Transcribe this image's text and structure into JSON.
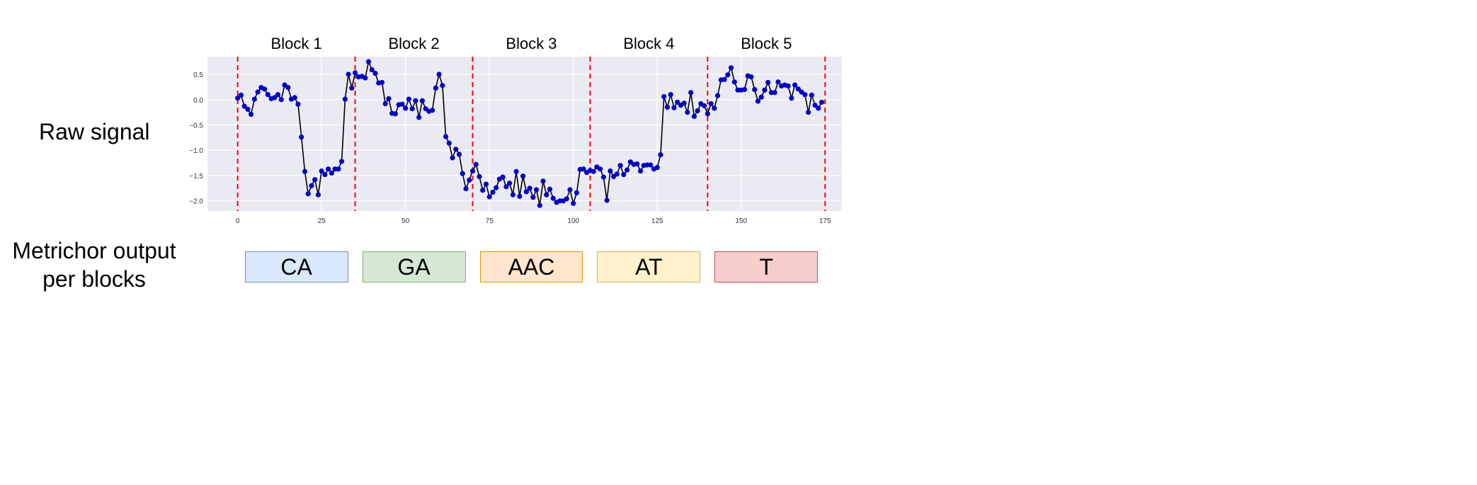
{
  "row_labels": {
    "raw": "Raw signal",
    "metrichor_line1": "Metrichor output",
    "metrichor_line2": "per blocks"
  },
  "colors": {
    "plot_bg": "#eaeaf2",
    "grid": "#ffffff",
    "line": "#000000",
    "point": "#0000cc",
    "boundary": "#ff0000"
  },
  "chart_data": {
    "type": "line",
    "title": "",
    "xlabel": "",
    "ylabel": "",
    "xlim": [
      -9,
      180
    ],
    "ylim": [
      -2.2,
      0.85
    ],
    "xticks": [
      0,
      25,
      50,
      75,
      100,
      125,
      150,
      175
    ],
    "yticks": [
      0.5,
      0.0,
      -0.5,
      -1.0,
      -1.5,
      -2.0
    ],
    "ytick_labels": [
      "0.5",
      "0.0",
      "−0.5",
      "−1.0",
      "−1.5",
      "−2.0"
    ],
    "grid": true,
    "block_boundaries": [
      0,
      35,
      70,
      105,
      140,
      175
    ],
    "block_titles": [
      "Block 1",
      "Block 2",
      "Block 3",
      "Block 4",
      "Block 5"
    ],
    "series": [
      {
        "values": [
          0.03,
          0.09,
          -0.13,
          -0.19,
          -0.29,
          0.01,
          0.15,
          0.24,
          0.21,
          0.1,
          0.02,
          0.04,
          0.1,
          0.0,
          0.29,
          0.24,
          0.01,
          0.04,
          -0.09,
          -0.74,
          -1.42,
          -1.86,
          -1.7,
          -1.58,
          -1.88,
          -1.41,
          -1.48,
          -1.37,
          -1.45,
          -1.37,
          -1.37,
          -1.22,
          0.01,
          0.5,
          0.23,
          0.53,
          0.45,
          0.46,
          0.43,
          0.75,
          0.59,
          0.52,
          0.33,
          0.34,
          -0.08,
          0.02,
          -0.27,
          -0.28,
          -0.1,
          -0.09,
          -0.17,
          0.01,
          -0.18,
          -0.02,
          -0.35,
          -0.02,
          -0.18,
          -0.23,
          -0.21,
          0.23,
          0.5,
          0.28,
          -0.73,
          -0.86,
          -1.15,
          -0.98,
          -1.08,
          -1.46,
          -1.76,
          -1.59,
          -1.41,
          -1.28,
          -1.52,
          -1.79,
          -1.67,
          -1.92,
          -1.83,
          -1.74,
          -1.57,
          -1.53,
          -1.72,
          -1.65,
          -1.88,
          -1.42,
          -1.91,
          -1.51,
          -1.82,
          -1.75,
          -1.93,
          -1.78,
          -2.09,
          -1.61,
          -1.88,
          -1.77,
          -1.95,
          -2.03,
          -2.0,
          -2.0,
          -1.96,
          -1.78,
          -2.05,
          -1.84,
          -1.38,
          -1.37,
          -1.44,
          -1.4,
          -1.42,
          -1.33,
          -1.37,
          -1.53,
          -1.99,
          -1.41,
          -1.52,
          -1.47,
          -1.3,
          -1.48,
          -1.39,
          -1.23,
          -1.28,
          -1.27,
          -1.41,
          -1.3,
          -1.29,
          -1.29,
          -1.37,
          -1.34,
          -1.09,
          0.06,
          -0.15,
          0.1,
          -0.16,
          -0.05,
          -0.11,
          -0.07,
          -0.25,
          0.14,
          -0.33,
          -0.22,
          -0.08,
          -0.12,
          -0.28,
          -0.08,
          -0.17,
          0.08,
          0.39,
          0.4,
          0.49,
          0.63,
          0.35,
          0.19,
          0.19,
          0.2,
          0.47,
          0.45,
          0.2,
          -0.03,
          0.05,
          0.19,
          0.34,
          0.14,
          0.14,
          0.35,
          0.27,
          0.29,
          0.27,
          0.03,
          0.29,
          0.21,
          0.15,
          0.1,
          -0.25,
          0.09,
          -0.11,
          -0.17,
          -0.05
        ]
      }
    ]
  },
  "outputs": [
    {
      "label": "CA",
      "fill": "#dae8fc",
      "border": "#6c8ebf"
    },
    {
      "label": "GA",
      "fill": "#d5e8d4",
      "border": "#82b366"
    },
    {
      "label": "AAC",
      "fill": "#ffe6cc",
      "border": "#d79b00"
    },
    {
      "label": "AT",
      "fill": "#fff2cc",
      "border": "#d6b656"
    },
    {
      "label": "T",
      "fill": "#f8cecc",
      "border": "#b85450"
    }
  ]
}
